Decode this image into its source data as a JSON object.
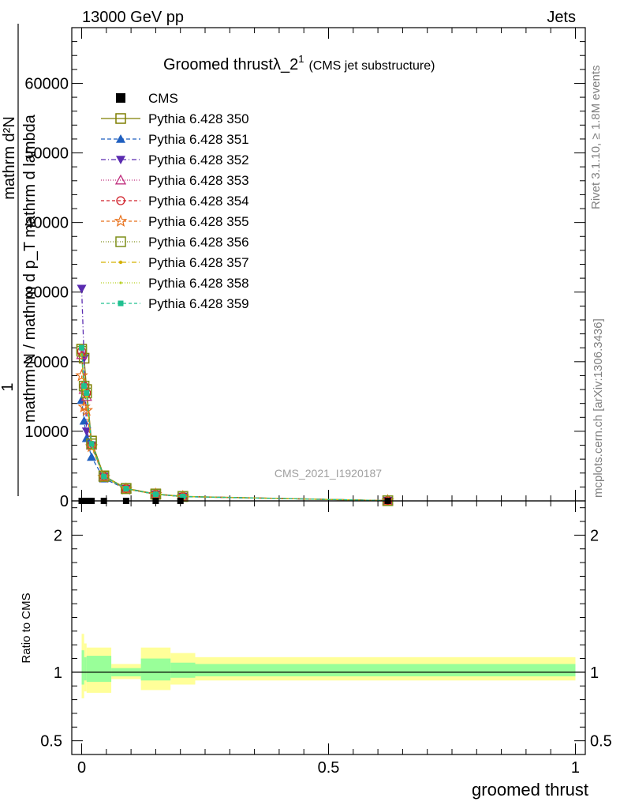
{
  "header": {
    "left": "13000 GeV pp",
    "right": "Jets"
  },
  "side_labels": {
    "rivet": "Rivet 3.1.10, ≥ 1.8M events",
    "mcplots": "mcplots.cern.ch [arXiv:1306.3436]"
  },
  "chart_data": [
    {
      "type": "line",
      "title": "Groomed thrustλ_2",
      "title_sup": "1",
      "subtitle": "(CMS jet substructure)",
      "watermark": "CMS_2021_I1920187",
      "ylabel_lines": [
        "1",
        "mathrm d²N",
        "mathrm N / mathrm d p_T mathrm d lambda",
        "mathrm d p_T mathrm d lambda"
      ],
      "ylim": [
        0,
        68000
      ],
      "xlim": [
        -0.02,
        1.02
      ],
      "y_ticks": [
        {
          "value": 0,
          "label": "0"
        },
        {
          "value": 10000,
          "label": "10000"
        },
        {
          "value": 20000,
          "label": "20000"
        },
        {
          "value": 30000,
          "label": "30000"
        },
        {
          "value": 40000,
          "label": "40000"
        },
        {
          "value": 50000,
          "label": "50000"
        },
        {
          "value": 60000,
          "label": "60000"
        }
      ],
      "cms": {
        "name": "CMS",
        "x": [
          0.0,
          0.005,
          0.01,
          0.015,
          0.02,
          0.045,
          0.09,
          0.15,
          0.2,
          0.62
        ],
        "values": [
          0,
          0,
          0,
          0,
          0,
          0,
          0,
          0,
          0,
          0
        ]
      },
      "x": [
        0.0,
        0.005,
        0.01,
        0.02,
        0.045,
        0.09,
        0.15,
        0.205,
        0.62
      ],
      "series": [
        {
          "name": "Pythia 6.428 350",
          "color": "#7f7f00",
          "marker": "square-open",
          "dash": "",
          "values": [
            21800,
            20500,
            16000,
            8600,
            3600,
            1800,
            1000,
            650,
            30
          ]
        },
        {
          "name": "Pythia 6.428 351",
          "color": "#1f5fbf",
          "marker": "triangle-up",
          "dash": "5,3",
          "values": [
            14500,
            11500,
            9000,
            6300,
            3200,
            1700,
            950,
            600,
            30
          ]
        },
        {
          "name": "Pythia 6.428 352",
          "color": "#5a2bb0",
          "marker": "triangle-down",
          "dash": "6,3,1,3",
          "values": [
            30500,
            20500,
            10000,
            8000,
            3500,
            1750,
            950,
            620,
            30
          ]
        },
        {
          "name": "Pythia 6.428 353",
          "color": "#c0307f",
          "marker": "triangle-open",
          "dash": "1,2",
          "values": [
            21000,
            16000,
            15000,
            8000,
            3500,
            1750,
            950,
            620,
            30
          ]
        },
        {
          "name": "Pythia 6.428 354",
          "color": "#d0202a",
          "marker": "circle-open",
          "dash": "4,3",
          "values": [
            21500,
            16500,
            15500,
            8000,
            3500,
            1750,
            950,
            620,
            30
          ]
        },
        {
          "name": "Pythia 6.428 355",
          "color": "#e8701a",
          "marker": "star",
          "dash": "4,3",
          "values": [
            18000,
            13500,
            13000,
            7800,
            3400,
            1700,
            950,
            620,
            30
          ]
        },
        {
          "name": "Pythia 6.428 356",
          "color": "#7f8f1a",
          "marker": "square-open",
          "dash": "1,2",
          "values": [
            21500,
            16500,
            15500,
            8200,
            3500,
            1750,
            950,
            620,
            30
          ]
        },
        {
          "name": "Pythia 6.428 357",
          "color": "#d4b000",
          "marker": "dot",
          "dash": "6,3,1,3",
          "values": [
            21000,
            16000,
            15000,
            8000,
            3500,
            1750,
            950,
            620,
            30
          ]
        },
        {
          "name": "Pythia 6.428 358",
          "color": "#b8d020",
          "marker": "dot-small",
          "dash": "1,2",
          "values": [
            21000,
            16000,
            15000,
            8000,
            3500,
            1750,
            950,
            620,
            30
          ]
        },
        {
          "name": "Pythia 6.428 359",
          "color": "#20c090",
          "marker": "square",
          "dash": "4,3",
          "values": [
            22000,
            16500,
            15500,
            8200,
            3500,
            1750,
            950,
            620,
            30
          ]
        }
      ]
    },
    {
      "type": "area",
      "ylabel": "Ratio to CMS",
      "xlabel": "groomed thrust",
      "ylim": [
        0.4,
        2.25
      ],
      "xlim": [
        -0.02,
        1.02
      ],
      "y_ticks": [
        {
          "value": 0.5,
          "label": "0.5"
        },
        {
          "value": 1,
          "label": "1"
        },
        {
          "value": 2,
          "label": "2"
        }
      ],
      "x_ticks": [
        {
          "value": 0,
          "label": "0"
        },
        {
          "value": 0.5,
          "label": "0.5"
        },
        {
          "value": 1,
          "label": "1"
        }
      ],
      "bands": [
        {
          "x0": 0.0,
          "x1": 0.005,
          "outer": [
            0.81,
            1.28
          ],
          "inner": [
            0.91,
            1.16
          ]
        },
        {
          "x0": 0.005,
          "x1": 0.01,
          "outer": [
            0.86,
            1.21
          ],
          "inner": [
            0.94,
            1.11
          ]
        },
        {
          "x0": 0.01,
          "x1": 0.06,
          "outer": [
            0.85,
            1.18
          ],
          "inner": [
            0.93,
            1.12
          ]
        },
        {
          "x0": 0.06,
          "x1": 0.12,
          "outer": [
            0.95,
            1.06
          ],
          "inner": [
            0.97,
            1.03
          ]
        },
        {
          "x0": 0.12,
          "x1": 0.18,
          "outer": [
            0.87,
            1.18
          ],
          "inner": [
            0.94,
            1.1
          ]
        },
        {
          "x0": 0.18,
          "x1": 0.23,
          "outer": [
            0.91,
            1.14
          ],
          "inner": [
            0.96,
            1.07
          ]
        },
        {
          "x0": 0.23,
          "x1": 1.0,
          "outer": [
            0.94,
            1.11
          ],
          "inner": [
            0.97,
            1.06
          ]
        }
      ],
      "reference": 1
    }
  ]
}
